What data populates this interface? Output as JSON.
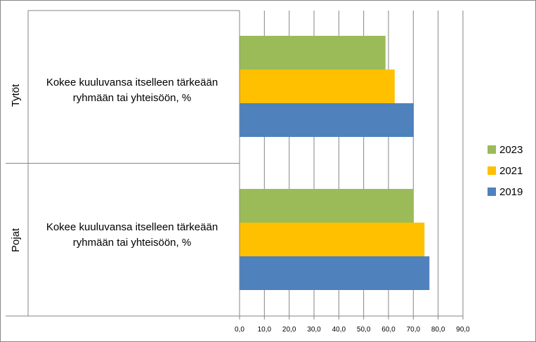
{
  "chart_data": {
    "type": "bar",
    "orientation": "horizontal",
    "title": "",
    "groups": [
      {
        "name": "Tytöt",
        "category": [
          "Kokee kuuluvansa itselleen  tärkeään",
          "ryhmään tai yhteisöön, %"
        ]
      },
      {
        "name": "Pojat",
        "category": [
          "Kokee kuuluvansa itselleen  tärkeään",
          "ryhmään tai yhteisöön, %"
        ]
      }
    ],
    "series": [
      {
        "name": "2023",
        "color": "#9BBB59",
        "values": [
          58.8,
          70.0
        ]
      },
      {
        "name": "2021",
        "color": "#FFC000",
        "values": [
          62.5,
          74.5
        ]
      },
      {
        "name": "2019",
        "color": "#4F81BD",
        "values": [
          70.2,
          76.5
        ]
      }
    ],
    "xlim": [
      0,
      90
    ],
    "xticks": [
      "0,0",
      "10,0",
      "20,0",
      "30,0",
      "40,0",
      "50,0",
      "60,0",
      "70,0",
      "80,0",
      "90,0"
    ],
    "grid": true,
    "legend": "right"
  }
}
